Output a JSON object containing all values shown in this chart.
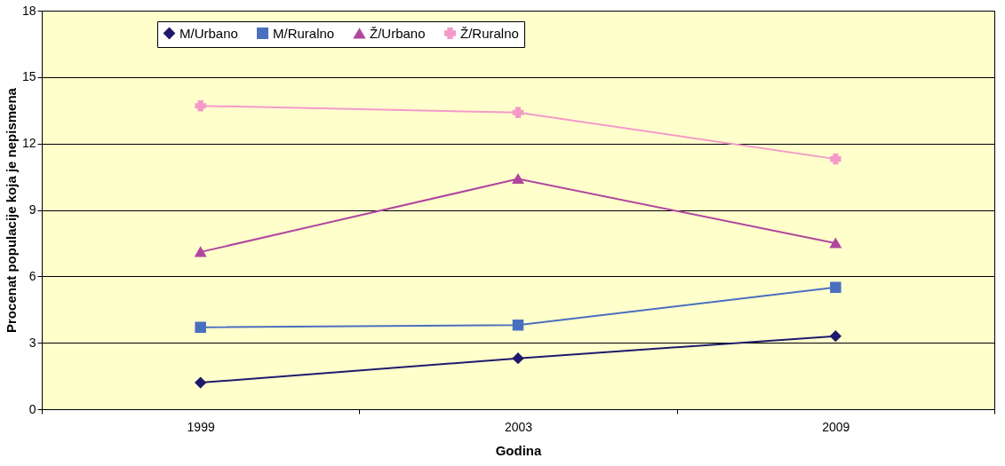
{
  "chart_data": {
    "type": "line",
    "xlabel": "Godina",
    "ylabel": "Procenat populacije koja je nepismena",
    "categories": [
      "1999",
      "2003",
      "2009"
    ],
    "series": [
      {
        "name": "M/Urbano",
        "color": "#1f1a6b",
        "marker": "diamond",
        "values": [
          1.2,
          2.3,
          3.3
        ]
      },
      {
        "name": "M/Ruralno",
        "color": "#4a6fbf",
        "marker": "square",
        "values": [
          3.7,
          3.8,
          5.5
        ]
      },
      {
        "name": "Ž/Urbano",
        "color": "#b0479f",
        "marker": "triangle",
        "values": [
          7.1,
          10.4,
          7.5
        ]
      },
      {
        "name": "Ž/Ruralno",
        "color": "#f49ac8",
        "marker": "cross",
        "values": [
          13.7,
          13.4,
          11.3
        ]
      }
    ],
    "ylim": [
      0,
      18
    ],
    "yticks": [
      0,
      3,
      6,
      9,
      12,
      15,
      18
    ],
    "grid": "y",
    "legend": "top"
  }
}
